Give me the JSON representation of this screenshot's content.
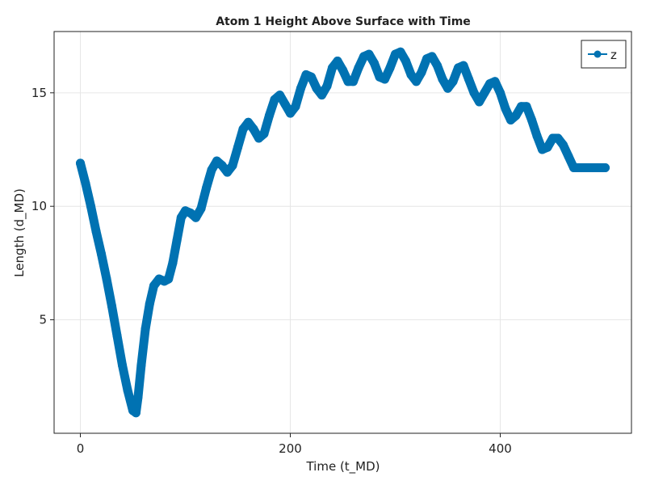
{
  "chart_data": {
    "type": "scatter",
    "title": "Atom 1 Height Above Surface with Time",
    "xlabel": "Time (t_MD)",
    "ylabel": "Length (d_MD)",
    "xlim": [
      -25,
      525
    ],
    "ylim": [
      0,
      17.7
    ],
    "xticks": [
      0,
      200,
      400
    ],
    "yticks": [
      5,
      10,
      15
    ],
    "grid": true,
    "legend_position": "top-right",
    "series": [
      {
        "name": "z",
        "color": "#0072b2",
        "style": "line-with-markers",
        "x": [
          0,
          5,
          10,
          15,
          20,
          25,
          30,
          35,
          40,
          45,
          50,
          53,
          55,
          58,
          62,
          66,
          70,
          75,
          80,
          84,
          88,
          92,
          96,
          100,
          105,
          110,
          115,
          120,
          125,
          130,
          135,
          140,
          145,
          150,
          155,
          160,
          165,
          170,
          175,
          180,
          185,
          190,
          195,
          200,
          205,
          210,
          215,
          220,
          225,
          230,
          235,
          240,
          245,
          250,
          255,
          260,
          265,
          270,
          275,
          280,
          285,
          290,
          295,
          300,
          305,
          310,
          315,
          320,
          325,
          330,
          335,
          340,
          345,
          350,
          355,
          360,
          365,
          370,
          375,
          380,
          385,
          390,
          395,
          400,
          405,
          410,
          415,
          420,
          425,
          430,
          435,
          440,
          445,
          450,
          455,
          460,
          465,
          470,
          475,
          480,
          485,
          490,
          495,
          500
        ],
        "y": [
          11.9,
          11.0,
          10.0,
          8.9,
          7.9,
          6.8,
          5.6,
          4.3,
          3.0,
          1.9,
          1.0,
          0.9,
          1.6,
          3.0,
          4.6,
          5.7,
          6.5,
          6.8,
          6.7,
          6.8,
          7.5,
          8.5,
          9.5,
          9.8,
          9.7,
          9.5,
          9.9,
          10.8,
          11.6,
          12.0,
          11.8,
          11.5,
          11.8,
          12.6,
          13.4,
          13.7,
          13.4,
          13.0,
          13.2,
          14.0,
          14.7,
          14.9,
          14.5,
          14.1,
          14.4,
          15.2,
          15.8,
          15.7,
          15.2,
          14.9,
          15.3,
          16.1,
          16.4,
          16.0,
          15.5,
          15.5,
          16.1,
          16.6,
          16.7,
          16.3,
          15.7,
          15.6,
          16.1,
          16.7,
          16.8,
          16.4,
          15.8,
          15.5,
          15.9,
          16.5,
          16.6,
          16.2,
          15.6,
          15.2,
          15.5,
          16.1,
          16.2,
          15.6,
          15.0,
          14.6,
          15.0,
          15.4,
          15.5,
          15.0,
          14.3,
          13.8,
          14.0,
          14.4,
          14.4,
          13.8,
          13.1,
          12.5,
          12.6,
          13.0,
          13.0,
          12.7,
          12.2,
          11.7,
          11.7,
          11.7,
          11.7,
          11.7,
          11.7,
          11.7
        ]
      }
    ]
  }
}
